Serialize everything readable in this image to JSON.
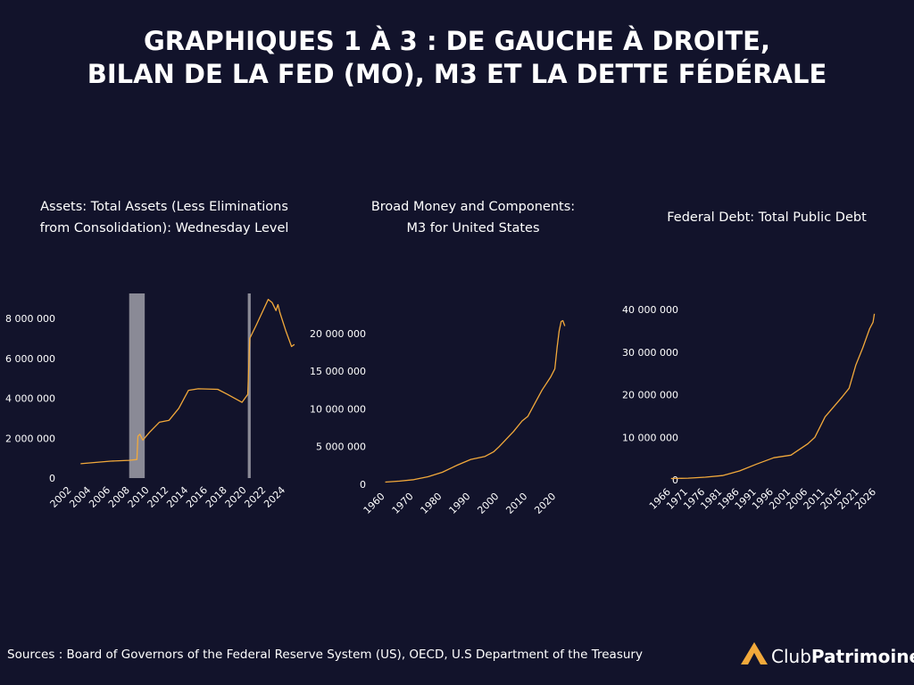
{
  "title": [
    "GRAPHIQUES 1 À 3 : DE GAUCHE À DROITE,",
    "BILAN DE LA FED (MO), M3 ET LA DETTE FÉDÉRALE"
  ],
  "chart_data": [
    {
      "type": "line",
      "title": [
        "Assets: Total Assets (Less Eliminations",
        "from Consolidation): Wednesday Level"
      ],
      "x": [
        2002.9,
        2006,
        2007.9,
        2008.7,
        2008.8,
        2009,
        2009.3,
        2010,
        2011,
        2012,
        2013,
        2014,
        2015,
        2017,
        2018,
        2019.5,
        2020.1,
        2020.3,
        2021,
        2022.2,
        2022.6,
        2023,
        2023.2,
        2023.4,
        2024,
        2024.6,
        2024.9
      ],
      "values": [
        720000,
        850000,
        890000,
        930000,
        2100000,
        2200000,
        1900000,
        2300000,
        2800000,
        2900000,
        3500000,
        4400000,
        4480000,
        4450000,
        4200000,
        3800000,
        4200000,
        7000000,
        7700000,
        8960000,
        8800000,
        8400000,
        8700000,
        8300000,
        7400000,
        6600000,
        6700000
      ],
      "color": "#f2a93b",
      "shaded_ranges": [
        [
          2007.9,
          2009.5
        ],
        [
          2020.1,
          2020.4
        ]
      ],
      "shade_color": "#8a8a96",
      "xlim": [
        2001.5,
        2025.0
      ],
      "xticks": [
        2002,
        2004,
        2006,
        2008,
        2010,
        2012,
        2014,
        2016,
        2018,
        2020,
        2022,
        2024
      ],
      "ylim": [
        0,
        9260000
      ],
      "yticks": [
        0,
        {
          "value": 2000000,
          "label": "2 000 000"
        },
        {
          "value": 4000000,
          "label": "4 000 000"
        },
        {
          "value": 6000000,
          "label": "6 000 000"
        },
        {
          "value": 8000000,
          "label": "8 000 000"
        }
      ]
    },
    {
      "type": "line",
      "title": [
        "Broad Money and Components:",
        "M3 for United States"
      ],
      "x": [
        1960,
        1965,
        1970,
        1975,
        1980,
        1985,
        1990,
        1995,
        1998,
        2000,
        2005,
        2008,
        2010,
        2012,
        2015,
        2018,
        2019.5,
        2020.3,
        2021,
        2021.7,
        2022.3,
        2023
      ],
      "values": [
        300000,
        420000,
        620000,
        1000000,
        1600000,
        2500000,
        3300000,
        3700000,
        4300000,
        5000000,
        7000000,
        8400000,
        9000000,
        10400000,
        12500000,
        14200000,
        15300000,
        18200000,
        20300000,
        21600000,
        21700000,
        21000000
      ],
      "color": "#f2a93b",
      "xlim": [
        1959.5,
        2024
      ],
      "xticks": [
        1960,
        1970,
        1980,
        1990,
        2000,
        2010,
        2020
      ],
      "ylim": [
        0,
        22000000
      ],
      "yticks": [
        0,
        {
          "value": 5000000,
          "label": "5 000 000"
        },
        {
          "value": 10000000,
          "label": "10 000 000"
        },
        {
          "value": 15000000,
          "label": "15 000 000"
        },
        {
          "value": 20000000,
          "label": "20 000 000"
        }
      ]
    },
    {
      "type": "line",
      "title": [
        "Federal Debt: Total Public Debt"
      ],
      "x": [
        1966,
        1971,
        1976,
        1981,
        1986,
        1991,
        1996,
        2001,
        2006,
        2008,
        2011,
        2016,
        2018,
        2020,
        2022,
        2024,
        2025,
        2025.4
      ],
      "values": [
        320000,
        400000,
        620000,
        1000000,
        2100000,
        3700000,
        5200000,
        5800000,
        8500000,
        10000000,
        14800000,
        19500000,
        21500000,
        27000000,
        31000000,
        35500000,
        37000000,
        39000000
      ],
      "color": "#f2a93b",
      "xlim": [
        1965,
        2026.8
      ],
      "xticks": [
        1966,
        1971,
        1976,
        1981,
        1986,
        1991,
        1996,
        2001,
        2006,
        2011,
        2016,
        2021,
        2026
      ],
      "ylim": [
        0,
        40000000
      ],
      "yticks": [
        0,
        {
          "value": 10000000,
          "label": "10 000 000"
        },
        {
          "value": 20000000,
          "label": "20 000 000"
        },
        {
          "value": 30000000,
          "label": "30 000 000"
        },
        {
          "value": 40000000,
          "label": "40 000 000"
        }
      ]
    }
  ],
  "source": "Sources : Board of Governors of the Federal Reserve System (US), OECD, U.S Department of the Treasury",
  "logo": {
    "prefix": "Club",
    "name": "Patrimoine"
  }
}
